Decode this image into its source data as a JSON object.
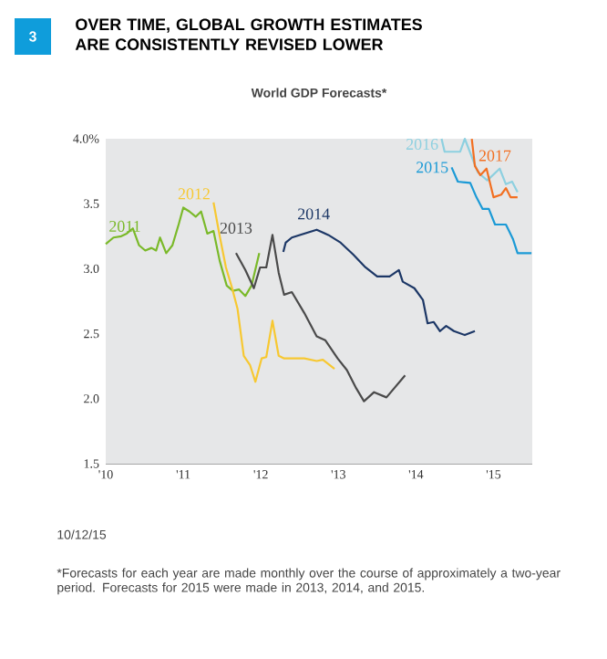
{
  "chart_data": {
    "type": "line",
    "title": "OVER TIME, GLOBAL GROWTH ESTIMATES ARE CONSISTENTLY REVISED LOWER",
    "subtitle": "World GDP Forecasts*",
    "xlim": [
      2010,
      2015.5
    ],
    "ylim": [
      1.5,
      4.0
    ],
    "xticks": [
      {
        "value": 2010,
        "label": "'10"
      },
      {
        "value": 2011,
        "label": "'11"
      },
      {
        "value": 2012,
        "label": "'12"
      },
      {
        "value": 2013,
        "label": "'13"
      },
      {
        "value": 2014,
        "label": "'14"
      },
      {
        "value": 2015,
        "label": "'15"
      }
    ],
    "yticks": [
      {
        "value": 1.5,
        "label": "1.5"
      },
      {
        "value": 2.0,
        "label": "2.0"
      },
      {
        "value": 2.5,
        "label": "2.5"
      },
      {
        "value": 3.0,
        "label": "3.0"
      },
      {
        "value": 3.5,
        "label": "3.5"
      },
      {
        "value": 4.0,
        "label": "4.0%"
      }
    ],
    "series": [
      {
        "name": "2011",
        "color": "#7ab929",
        "x": [
          2010.0,
          2010.1,
          2010.2,
          2010.27,
          2010.35,
          2010.43,
          2010.51,
          2010.59,
          2010.65,
          2010.7,
          2010.78,
          2010.86,
          2010.94,
          2011.0,
          2011.08,
          2011.16,
          2011.23,
          2011.31,
          2011.39,
          2011.47,
          2011.56,
          2011.64,
          2011.72,
          2011.8,
          2011.88,
          2011.98
        ],
        "values": [
          3.19,
          3.24,
          3.25,
          3.27,
          3.31,
          3.18,
          3.14,
          3.16,
          3.14,
          3.24,
          3.12,
          3.18,
          3.34,
          3.47,
          3.44,
          3.4,
          3.44,
          3.27,
          3.29,
          3.06,
          2.87,
          2.83,
          2.84,
          2.79,
          2.87,
          3.12
        ]
      },
      {
        "name": "2012",
        "color": "#f7c831",
        "x": [
          2011.39,
          2011.47,
          2011.55,
          2011.63,
          2011.7,
          2011.78,
          2011.86,
          2011.93,
          2012.01,
          2012.07,
          2012.15,
          2012.23,
          2012.3,
          2012.56,
          2012.72,
          2012.8,
          2012.95
        ],
        "values": [
          3.51,
          3.25,
          3.01,
          2.85,
          2.69,
          2.33,
          2.26,
          2.13,
          2.31,
          2.32,
          2.6,
          2.33,
          2.31,
          2.31,
          2.29,
          2.3,
          2.23
        ]
      },
      {
        "name": "2013",
        "color": "#4a4a4a",
        "x": [
          2011.68,
          2011.8,
          2011.91,
          2011.99,
          2012.07,
          2012.15,
          2012.23,
          2012.3,
          2012.4,
          2012.56,
          2012.72,
          2012.83,
          2012.99,
          2013.11,
          2013.23,
          2013.33,
          2013.46,
          2013.62,
          2013.86
        ],
        "values": [
          3.12,
          2.99,
          2.85,
          3.01,
          3.01,
          3.26,
          2.97,
          2.8,
          2.82,
          2.66,
          2.48,
          2.45,
          2.31,
          2.22,
          2.08,
          1.98,
          2.05,
          2.01,
          2.18
        ]
      },
      {
        "name": "2014",
        "color": "#1c3766",
        "x": [
          2012.29,
          2012.32,
          2012.4,
          2012.56,
          2012.72,
          2012.87,
          2013.03,
          2013.19,
          2013.35,
          2013.5,
          2013.66,
          2013.78,
          2013.83,
          2013.98,
          2014.09,
          2014.15,
          2014.23,
          2014.31,
          2014.39,
          2014.49,
          2014.63,
          2014.76
        ],
        "values": [
          3.13,
          3.2,
          3.24,
          3.27,
          3.3,
          3.26,
          3.2,
          3.11,
          3.01,
          2.94,
          2.94,
          2.99,
          2.9,
          2.85,
          2.76,
          2.58,
          2.59,
          2.52,
          2.56,
          2.52,
          2.49,
          2.52
        ]
      },
      {
        "name": "2015",
        "color": "#1b9ad6",
        "x": [
          2014.46,
          2014.54,
          2014.7,
          2014.78,
          2014.86,
          2014.94,
          2015.02,
          2015.16,
          2015.25,
          2015.31,
          2015.49
        ],
        "values": [
          3.78,
          3.67,
          3.66,
          3.55,
          3.46,
          3.46,
          3.34,
          3.34,
          3.23,
          3.12,
          3.12
        ]
      },
      {
        "name": "2016",
        "color": "#8dd0e0",
        "x": [
          2014.33,
          2014.37,
          2014.57,
          2014.63,
          2014.72,
          2014.8,
          2014.92,
          2015.08,
          2015.16,
          2015.24,
          2015.31
        ],
        "values": [
          4.0,
          3.9,
          3.9,
          4.0,
          3.86,
          3.74,
          3.68,
          3.77,
          3.65,
          3.67,
          3.59
        ]
      },
      {
        "name": "2017",
        "color": "#f26f21",
        "x": [
          2014.72,
          2014.76,
          2014.83,
          2014.91,
          2015.0,
          2015.1,
          2015.16,
          2015.22,
          2015.31
        ],
        "values": [
          4.0,
          3.79,
          3.72,
          3.77,
          3.55,
          3.57,
          3.62,
          3.55,
          3.55
        ]
      }
    ],
    "annotations": [
      "3",
      "10/12/15",
      "*Forecasts for each year are made monthly over the course of approximately a two-year period. Forecasts for 2015 were made in 2013, 2014, and 2015."
    ]
  }
}
